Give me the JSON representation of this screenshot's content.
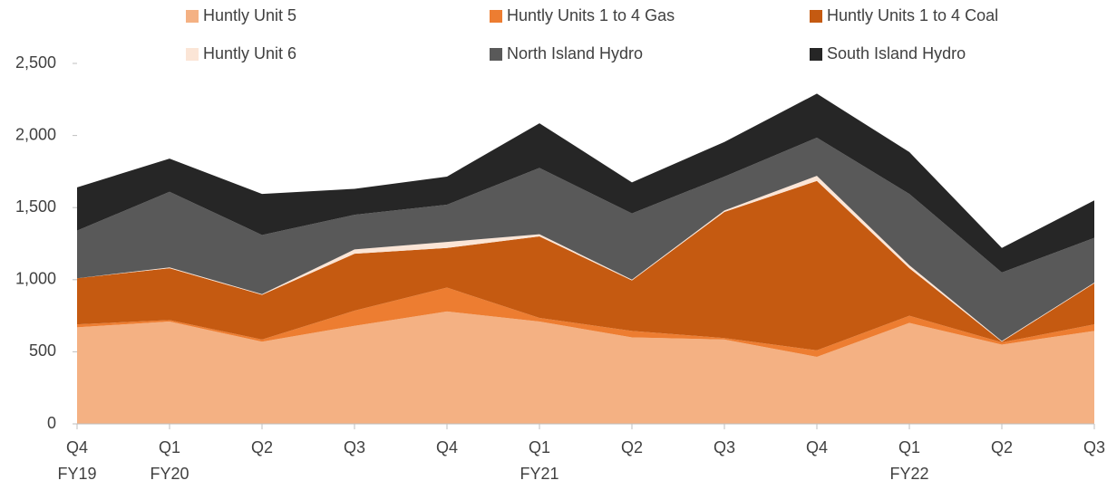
{
  "chart_data": {
    "type": "stacked_area",
    "categories": [
      "Q4",
      "Q1",
      "Q2",
      "Q3",
      "Q4",
      "Q1",
      "Q2",
      "Q3",
      "Q4",
      "Q1",
      "Q2",
      "Q3"
    ],
    "category_groups": [
      "FY19",
      "FY20",
      null,
      null,
      null,
      "FY21",
      null,
      null,
      null,
      "FY22",
      null,
      null
    ],
    "series": [
      {
        "name": "Huntly Unit 5",
        "color": "#f4b183",
        "values": [
          670,
          710,
          570,
          680,
          780,
          710,
          600,
          585,
          465,
          700,
          550,
          645
        ]
      },
      {
        "name": "Huntly Units 1 to 4 Gas",
        "color": "#ed7d31",
        "values": [
          20,
          10,
          15,
          105,
          165,
          25,
          45,
          10,
          45,
          50,
          15,
          45
        ]
      },
      {
        "name": "Huntly Units 1 to 4 Coal",
        "color": "#c55a11",
        "values": [
          320,
          360,
          310,
          395,
          275,
          565,
          350,
          875,
          1175,
          330,
          5,
          285
        ]
      },
      {
        "name": "Huntly Unit 6",
        "color": "#fbe5d6",
        "values": [
          0,
          5,
          5,
          30,
          42,
          15,
          5,
          10,
          35,
          20,
          5,
          5
        ]
      },
      {
        "name": "North Island Hydro",
        "color": "#595959",
        "values": [
          330,
          525,
          410,
          240,
          258,
          460,
          460,
          235,
          265,
          495,
          475,
          310
        ]
      },
      {
        "name": "South Island Hydro",
        "color": "#262626",
        "values": [
          300,
          230,
          285,
          180,
          195,
          310,
          215,
          240,
          305,
          290,
          170,
          260
        ]
      }
    ],
    "ylim": [
      0,
      2500
    ],
    "yticks": [
      0,
      500,
      {
        "value": 1000,
        "label": "1,000"
      },
      {
        "value": 1500,
        "label": "1,500"
      },
      {
        "value": 2000,
        "label": "2,000"
      },
      {
        "value": 2500,
        "label": "2,500"
      }
    ],
    "grid": false
  }
}
